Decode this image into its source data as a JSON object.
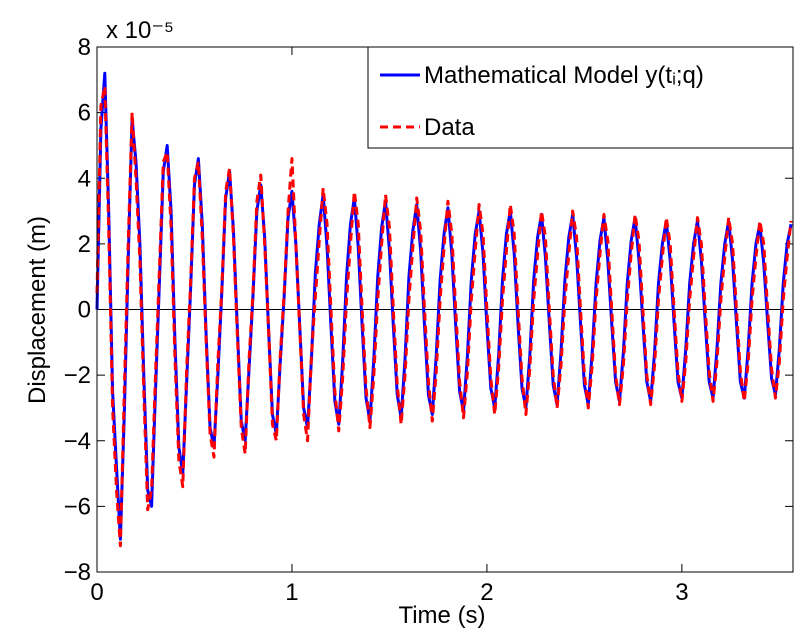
{
  "chart_data": {
    "type": "line",
    "xlabel": "Time (s)",
    "ylabel": "Displacement (m)",
    "y_multiplier": "x 10⁻⁵",
    "xlim": [
      0,
      3.57
    ],
    "ylim": [
      -8,
      8
    ],
    "xticks": [
      0,
      1,
      2,
      3
    ],
    "yticks": [
      {
        "value": -8,
        "label": "−8"
      },
      {
        "value": -6,
        "label": "−6"
      },
      {
        "value": -4,
        "label": "−4"
      },
      {
        "value": -2,
        "label": "−2"
      },
      0,
      2,
      4,
      6,
      8
    ],
    "legend": "upper right",
    "x": [
      0,
      0.02,
      0.04,
      0.06,
      0.08,
      0.1,
      0.12,
      0.14,
      0.16,
      0.18,
      0.2,
      0.22,
      0.24,
      0.26,
      0.28,
      0.3,
      0.32,
      0.34,
      0.36,
      0.38,
      0.4,
      0.42,
      0.44,
      0.46,
      0.48,
      0.5,
      0.52,
      0.54,
      0.56,
      0.58,
      0.6,
      0.62,
      0.64,
      0.66,
      0.68,
      0.7,
      0.72,
      0.74,
      0.76,
      0.78,
      0.8,
      0.82,
      0.84,
      0.86,
      0.88,
      0.9,
      0.92,
      0.94,
      0.96,
      0.98,
      1,
      1.02,
      1.04,
      1.06,
      1.08,
      1.1,
      1.12,
      1.14,
      1.16,
      1.18,
      1.2,
      1.22,
      1.24,
      1.26,
      1.28,
      1.3,
      1.32,
      1.34,
      1.36,
      1.38,
      1.4,
      1.42,
      1.44,
      1.46,
      1.48,
      1.5,
      1.52,
      1.54,
      1.56,
      1.58,
      1.6,
      1.62,
      1.64,
      1.66,
      1.68,
      1.7,
      1.72,
      1.74,
      1.76,
      1.78,
      1.8,
      1.82,
      1.84,
      1.86,
      1.88,
      1.9,
      1.92,
      1.94,
      1.96,
      1.98,
      2,
      2.02,
      2.04,
      2.06,
      2.08,
      2.1,
      2.12,
      2.14,
      2.16,
      2.18,
      2.2,
      2.22,
      2.24,
      2.26,
      2.28,
      2.3,
      2.32,
      2.34,
      2.36,
      2.38,
      2.4,
      2.42,
      2.44,
      2.46,
      2.48,
      2.5,
      2.52,
      2.54,
      2.56,
      2.58,
      2.6,
      2.62,
      2.64,
      2.66,
      2.68,
      2.7,
      2.72,
      2.74,
      2.76,
      2.78,
      2.8,
      2.82,
      2.84,
      2.86,
      2.88,
      2.9,
      2.92,
      2.94,
      2.96,
      2.98,
      3,
      3.02,
      3.04,
      3.06,
      3.08,
      3.1,
      3.12,
      3.14,
      3.16,
      3.18,
      3.2,
      3.22,
      3.24,
      3.26,
      3.28,
      3.3,
      3.32,
      3.34,
      3.36,
      3.38,
      3.4,
      3.42,
      3.44,
      3.46,
      3.48,
      3.5,
      3.52,
      3.54,
      3.56
    ],
    "series": [
      {
        "name": "Mathematical Model y(tᵢ;q)",
        "color": "#0000ff",
        "dash": false,
        "values": [
          0.0,
          5.5,
          7.2,
          3.0,
          -2.5,
          -4.8,
          -7.0,
          -3.2,
          1.5,
          5.8,
          4.5,
          2.0,
          -2.0,
          -5.5,
          -6.0,
          -2.5,
          0.8,
          4.2,
          5.0,
          3.0,
          -1.0,
          -4.2,
          -5.0,
          -2.2,
          0.6,
          3.8,
          4.6,
          2.6,
          -0.8,
          -3.6,
          -4.2,
          -2.0,
          0.5,
          3.4,
          4.2,
          2.4,
          -0.6,
          -3.4,
          -4.0,
          -1.8,
          0.4,
          3.0,
          3.8,
          2.2,
          -0.6,
          -3.2,
          -3.8,
          -1.6,
          0.4,
          2.8,
          3.6,
          2.0,
          -0.5,
          -3.0,
          -3.6,
          -1.5,
          1.1,
          2.6,
          3.5,
          1.9,
          -0.5,
          -2.8,
          -3.5,
          -1.6,
          1.0,
          2.6,
          3.4,
          1.9,
          -0.5,
          -2.7,
          -3.4,
          -1.5,
          1.0,
          2.5,
          3.3,
          1.8,
          -0.5,
          -2.6,
          -3.3,
          -1.5,
          1.0,
          2.4,
          3.2,
          1.8,
          -0.5,
          -2.6,
          -3.2,
          -1.4,
          0.9,
          2.3,
          3.1,
          1.7,
          -0.5,
          -2.5,
          -3.1,
          -1.4,
          0.9,
          2.3,
          3.0,
          1.7,
          -0.5,
          -2.4,
          -3.0,
          -1.4,
          0.9,
          2.3,
          3.0,
          1.7,
          -0.5,
          -2.4,
          -3.0,
          -1.4,
          0.9,
          2.2,
          2.9,
          1.6,
          -0.4,
          -2.3,
          -2.9,
          -1.3,
          0.9,
          2.2,
          2.9,
          1.6,
          -0.4,
          -2.3,
          -2.9,
          -1.3,
          0.8,
          2.1,
          2.8,
          1.5,
          -0.4,
          -2.2,
          -2.8,
          -1.3,
          0.8,
          2.1,
          2.8,
          1.5,
          -0.4,
          -2.2,
          -2.8,
          -1.3,
          0.8,
          2.0,
          2.7,
          1.5,
          -0.4,
          -2.2,
          -2.7,
          -1.2,
          0.8,
          2.0,
          2.7,
          1.5,
          -0.4,
          -2.2,
          -2.7,
          -1.2,
          0.8,
          2.0,
          2.7,
          1.5,
          -0.4,
          -2.2,
          -2.7,
          -1.2,
          0.8,
          2.0,
          2.6,
          1.4,
          -0.4,
          -2.1,
          -2.6,
          -1.2,
          0.8,
          2.0,
          2.6
        ]
      },
      {
        "name": "Data",
        "color": "#ff0000",
        "dash": true,
        "values": [
          0.5,
          6.2,
          6.8,
          2.5,
          -3.0,
          -5.5,
          -7.2,
          -2.5,
          2.0,
          6.0,
          4.0,
          1.5,
          -2.5,
          -6.1,
          -5.5,
          -2.0,
          1.2,
          4.5,
          4.8,
          2.5,
          -1.5,
          -4.6,
          -5.4,
          -1.8,
          0.8,
          4.0,
          4.5,
          2.2,
          -1.0,
          -3.8,
          -4.5,
          -1.6,
          0.6,
          3.6,
          4.3,
          2.2,
          -0.8,
          -3.6,
          -4.4,
          -1.5,
          0.5,
          3.3,
          4.1,
          2.0,
          -0.6,
          -3.5,
          -4.0,
          -1.4,
          0.5,
          3.0,
          4.6,
          2.0,
          -0.6,
          -3.2,
          -4.0,
          -1.4,
          0.4,
          2.1,
          3.7,
          2.6,
          0.0,
          -2.5,
          -3.7,
          -2.1,
          0.3,
          2.0,
          3.6,
          2.6,
          0.0,
          -2.4,
          -3.6,
          -2.0,
          0.3,
          2.0,
          3.5,
          2.5,
          0.0,
          -2.3,
          -3.5,
          -2.0,
          0.3,
          1.9,
          3.4,
          2.4,
          0.0,
          -2.2,
          -3.4,
          -1.9,
          0.3,
          1.9,
          3.3,
          2.3,
          0.0,
          -2.2,
          -3.3,
          -1.9,
          0.3,
          1.8,
          3.2,
          2.3,
          0.0,
          -2.1,
          -3.2,
          -1.8,
          0.3,
          1.8,
          3.2,
          2.3,
          0.0,
          -2.1,
          -3.2,
          -1.8,
          0.3,
          1.7,
          3.0,
          2.2,
          0.0,
          -2.0,
          -3.0,
          -1.7,
          0.3,
          1.7,
          3.0,
          2.2,
          0.0,
          -2.0,
          -3.0,
          -1.7,
          0.3,
          1.7,
          2.9,
          2.1,
          0.0,
          -2.0,
          -2.9,
          -1.7,
          0.3,
          1.7,
          2.9,
          2.1,
          0.0,
          -2.0,
          -2.9,
          -1.7,
          0.3,
          1.6,
          2.8,
          2.0,
          0.0,
          -1.9,
          -2.8,
          -1.6,
          0.3,
          1.6,
          2.8,
          2.0,
          0.0,
          -1.9,
          -2.8,
          -1.6,
          0.3,
          1.6,
          2.8,
          2.0,
          0.0,
          -1.9,
          -2.8,
          -1.6,
          0.3,
          1.6,
          2.7,
          2.0,
          0.0,
          -1.8,
          -2.7,
          -1.6,
          0.3,
          1.6,
          2.7
        ]
      }
    ]
  }
}
